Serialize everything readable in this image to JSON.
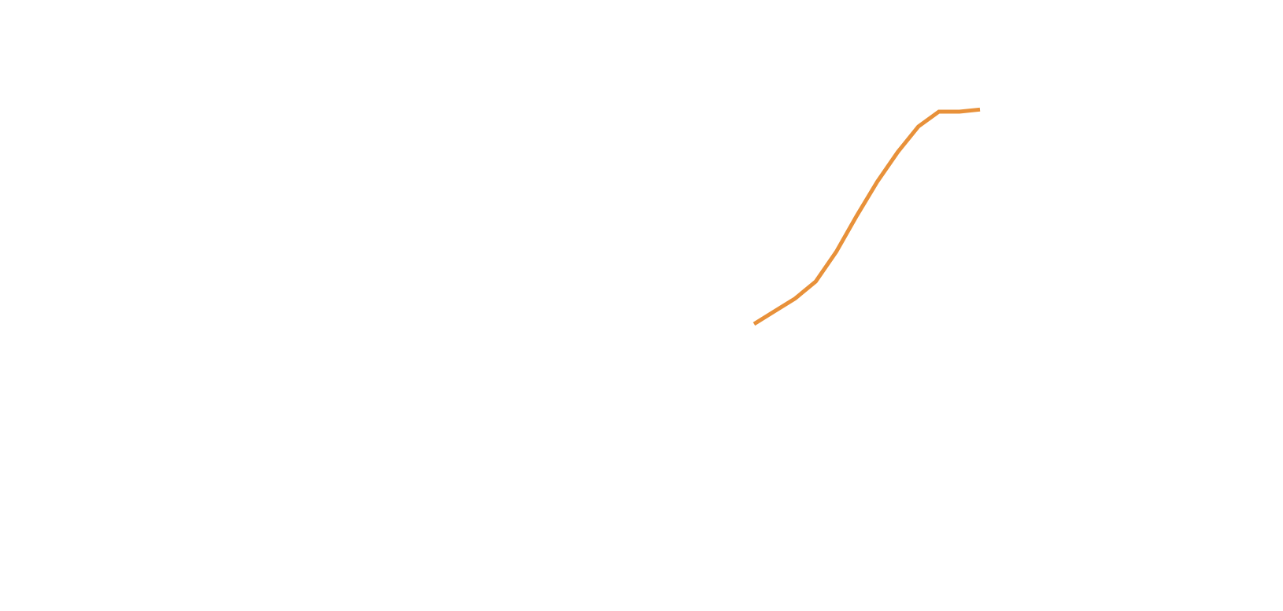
{
  "chart_data": {
    "type": "line",
    "title": "",
    "xlabel": "",
    "ylabel": "",
    "grid": false,
    "legend": "none",
    "series": [
      {
        "color": "#E8913A",
        "x": [
          1,
          2,
          3,
          4,
          5,
          6,
          7,
          8,
          9,
          10,
          11,
          12
        ],
        "values": [
          0.0,
          0.06,
          0.12,
          0.2,
          0.34,
          0.51,
          0.67,
          0.81,
          0.93,
          1.0,
          1.0,
          1.01
        ]
      }
    ]
  }
}
